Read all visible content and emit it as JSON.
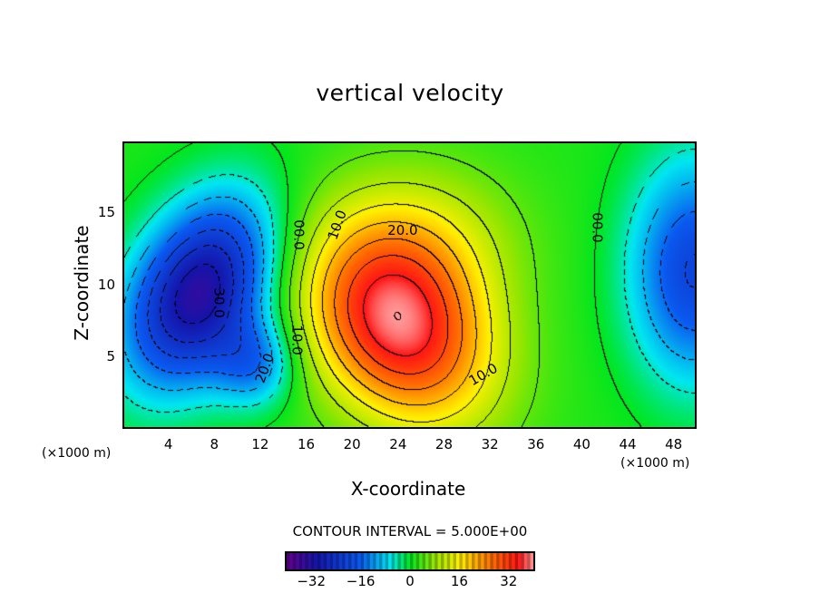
{
  "title": "vertical velocity",
  "chart_data": {
    "type": "heatmap",
    "title": "vertical velocity",
    "xlabel": "X-coordinate",
    "ylabel": "Z-coordinate",
    "x_unit": "(×1000 m)",
    "y_unit": "(×1000 m)",
    "xlim": [
      0,
      50
    ],
    "ylim": [
      0,
      20
    ],
    "x_ticks": [
      4,
      8,
      12,
      16,
      20,
      24,
      28,
      32,
      36,
      40,
      44,
      48
    ],
    "y_ticks": [
      5,
      10,
      15
    ],
    "contour_interval": 5,
    "contour_interval_text": "CONTOUR INTERVAL = 5.000E+00",
    "background": 1.5,
    "features": [
      {
        "name": "downdraft-left",
        "x": 6.5,
        "z": 9.5,
        "amplitude": -35,
        "sx": 4.2,
        "sz": 4.6,
        "tilt": -0.35
      },
      {
        "name": "downdraft-left-lower",
        "x": 11.5,
        "z": 4.5,
        "amplitude": -14,
        "sx": 2.5,
        "sz": 2.2,
        "tilt": 0
      },
      {
        "name": "updraft",
        "x": 24,
        "z": 7,
        "amplitude": 35,
        "sx": 5.5,
        "sz": 4.8,
        "tilt": 0.3
      },
      {
        "name": "updraft-upper",
        "x": 26,
        "z": 13,
        "amplitude": 10,
        "sx": 6,
        "sz": 4,
        "tilt": 0
      },
      {
        "name": "downdraft-right",
        "x": 50,
        "z": 11,
        "amplitude": -22,
        "sx": 4,
        "sz": 5.5,
        "tilt": 0
      }
    ],
    "contour_labels": [
      {
        "text": "00.0",
        "x": 15.5,
        "z": 13.5,
        "angle": 90
      },
      {
        "text": "10.0",
        "x": 18.8,
        "z": 14.2,
        "angle": -70
      },
      {
        "text": "20.0",
        "x": 24.5,
        "z": 13.8,
        "angle": 0
      },
      {
        "text": "00.0",
        "x": 41.5,
        "z": 14,
        "angle": 90
      },
      {
        "text": "30.0",
        "x": 8.5,
        "z": 8.8,
        "angle": 90
      },
      {
        "text": "10.0",
        "x": 15.3,
        "z": 6.2,
        "angle": 90
      },
      {
        "text": "20.0",
        "x": 12.5,
        "z": 4.2,
        "angle": -70
      },
      {
        "text": "10.0",
        "x": 31.5,
        "z": 3.8,
        "angle": -30
      }
    ],
    "colorbar": {
      "range": [
        -40,
        40
      ],
      "ticks": [
        -32,
        -16,
        0,
        16,
        32
      ]
    }
  }
}
